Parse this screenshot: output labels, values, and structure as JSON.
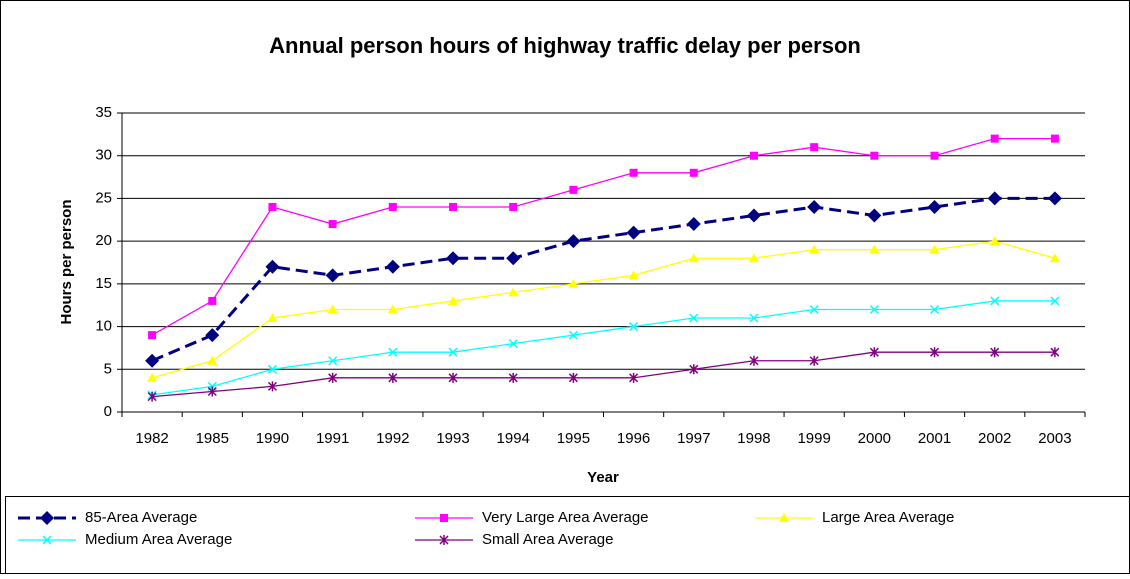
{
  "chart_data": {
    "type": "line",
    "title": "Annual person hours of highway traffic delay per person",
    "x_label": "Year",
    "y_label": "Hours per person",
    "categories": [
      "1982",
      "1985",
      "1990",
      "1991",
      "1992",
      "1993",
      "1994",
      "1995",
      "1996",
      "1997",
      "1998",
      "1999",
      "2000",
      "2001",
      "2002",
      "2003"
    ],
    "ylim": [
      0,
      35
    ],
    "yticks": [
      0,
      5,
      10,
      15,
      20,
      25,
      30,
      35
    ],
    "grid": true,
    "legend": "bottom",
    "series": [
      {
        "name": "85-Area Average",
        "color": "#000080",
        "marker": "diamond",
        "dash": true,
        "values": [
          6,
          9,
          17,
          16,
          17,
          18,
          18,
          20,
          21,
          22,
          23,
          24,
          23,
          24,
          25,
          25
        ]
      },
      {
        "name": "Very Large Area Average",
        "color": "#ff00ff",
        "marker": "square",
        "values": [
          9,
          13,
          24,
          22,
          24,
          24,
          24,
          26,
          28,
          28,
          30,
          31,
          30,
          30,
          32,
          32
        ]
      },
      {
        "name": "Large Area Average",
        "color": "#ffff00",
        "marker": "triangle",
        "values": [
          4,
          6,
          11,
          12,
          12,
          13,
          14,
          15,
          16,
          18,
          18,
          19,
          19,
          19,
          20,
          18
        ]
      },
      {
        "name": "Medium Area Average",
        "color": "#00ffff",
        "marker": "x",
        "values": [
          2,
          3,
          5,
          6,
          7,
          7,
          8,
          9,
          10,
          11,
          11,
          12,
          12,
          12,
          13,
          13
        ]
      },
      {
        "name": "Small Area Average",
        "color": "#800080",
        "marker": "asterisk",
        "values": [
          1.8,
          2.4,
          3,
          4,
          4,
          4,
          4,
          4,
          4,
          5,
          6,
          6,
          7,
          7,
          7,
          7
        ]
      }
    ]
  }
}
